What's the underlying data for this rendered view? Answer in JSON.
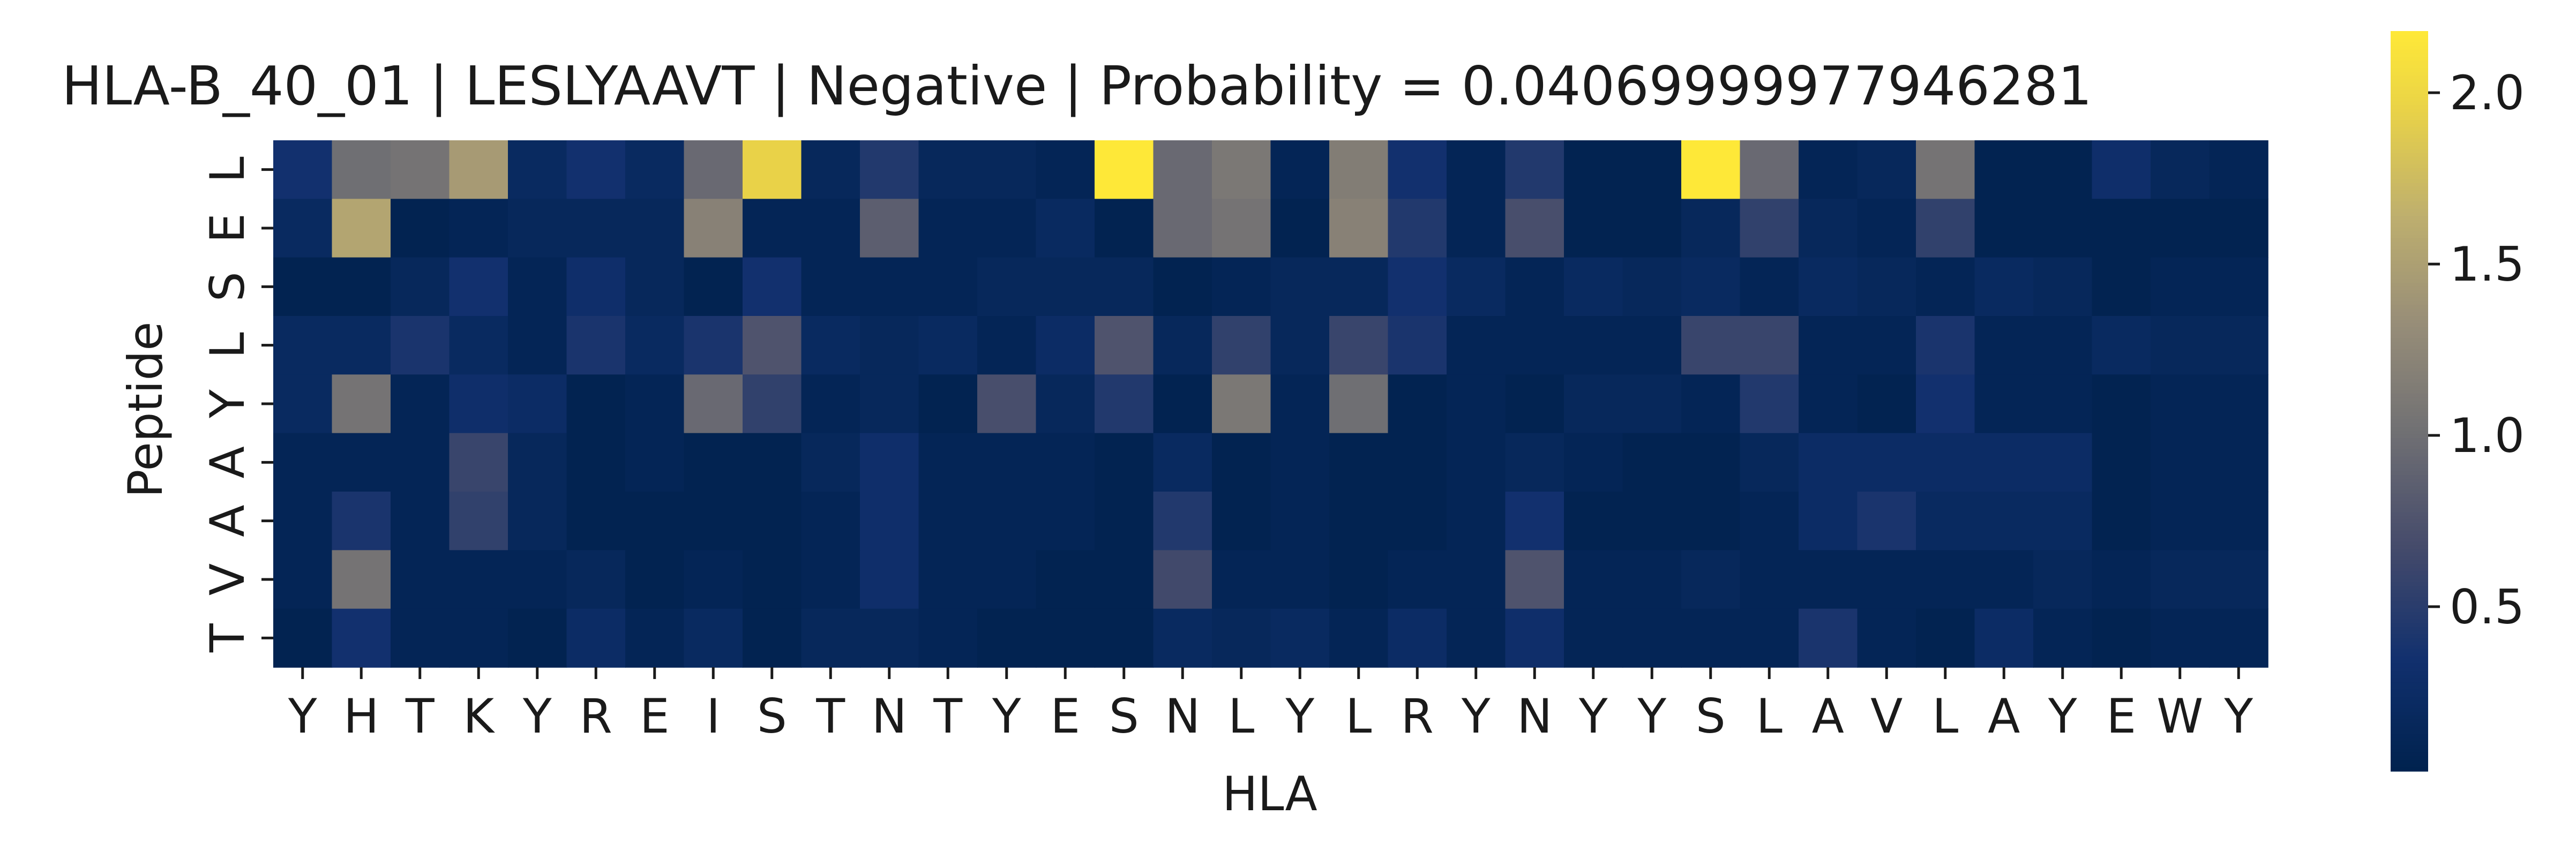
{
  "chart_data": {
    "type": "heatmap",
    "title": "HLA-B_40_01 | LESLYAAVT | Negative | Probability = 0.04069999977946281",
    "xlabel": "HLA",
    "ylabel": "Peptide",
    "x_categories": [
      "Y",
      "H",
      "T",
      "K",
      "Y",
      "R",
      "E",
      "I",
      "S",
      "T",
      "N",
      "T",
      "Y",
      "E",
      "S",
      "N",
      "L",
      "Y",
      "L",
      "R",
      "Y",
      "N",
      "Y",
      "Y",
      "S",
      "L",
      "A",
      "V",
      "L",
      "A",
      "Y",
      "E",
      "W",
      "Y"
    ],
    "y_categories": [
      "L",
      "E",
      "S",
      "L",
      "Y",
      "A",
      "A",
      "V",
      "T"
    ],
    "colorbar": {
      "colormap": "cividis",
      "vmin": 0.02,
      "vmax": 2.18,
      "ticks": [
        0.5,
        1.0,
        1.5,
        2.0
      ],
      "tick_labels": [
        "0.5",
        "1.0",
        "1.5",
        "2.0"
      ]
    },
    "values": [
      [
        0.35,
        1.0,
        1.05,
        1.45,
        0.2,
        0.35,
        0.2,
        0.95,
        1.95,
        0.15,
        0.45,
        0.15,
        0.15,
        0.1,
        2.18,
        0.95,
        1.1,
        0.1,
        1.15,
        0.35,
        0.1,
        0.45,
        0.05,
        0.05,
        2.18,
        0.95,
        0.1,
        0.15,
        1.05,
        0.05,
        0.05,
        0.3,
        0.15,
        0.1
      ],
      [
        0.2,
        1.55,
        0.05,
        0.1,
        0.15,
        0.15,
        0.15,
        1.2,
        0.1,
        0.1,
        0.85,
        0.1,
        0.1,
        0.2,
        0.05,
        0.95,
        1.05,
        0.05,
        1.2,
        0.45,
        0.1,
        0.7,
        0.05,
        0.05,
        0.15,
        0.55,
        0.15,
        0.1,
        0.55,
        0.05,
        0.05,
        0.05,
        0.05,
        0.05
      ],
      [
        0.05,
        0.05,
        0.15,
        0.35,
        0.1,
        0.3,
        0.15,
        0.05,
        0.35,
        0.1,
        0.1,
        0.1,
        0.15,
        0.15,
        0.15,
        0.05,
        0.1,
        0.15,
        0.15,
        0.35,
        0.2,
        0.1,
        0.2,
        0.15,
        0.2,
        0.1,
        0.2,
        0.15,
        0.1,
        0.2,
        0.15,
        0.05,
        0.1,
        0.1
      ],
      [
        0.2,
        0.2,
        0.4,
        0.2,
        0.1,
        0.4,
        0.2,
        0.4,
        0.75,
        0.2,
        0.15,
        0.2,
        0.1,
        0.25,
        0.75,
        0.15,
        0.55,
        0.15,
        0.6,
        0.4,
        0.1,
        0.1,
        0.1,
        0.1,
        0.6,
        0.6,
        0.1,
        0.1,
        0.4,
        0.1,
        0.1,
        0.2,
        0.15,
        0.15
      ],
      [
        0.2,
        1.05,
        0.1,
        0.3,
        0.25,
        0.05,
        0.1,
        0.95,
        0.55,
        0.1,
        0.15,
        0.05,
        0.7,
        0.15,
        0.45,
        0.05,
        1.1,
        0.1,
        1.0,
        0.05,
        0.1,
        0.05,
        0.15,
        0.15,
        0.1,
        0.45,
        0.1,
        0.05,
        0.35,
        0.1,
        0.1,
        0.05,
        0.1,
        0.1
      ],
      [
        0.1,
        0.1,
        0.1,
        0.6,
        0.15,
        0.05,
        0.1,
        0.05,
        0.05,
        0.15,
        0.3,
        0.1,
        0.1,
        0.1,
        0.05,
        0.2,
        0.05,
        0.1,
        0.05,
        0.05,
        0.1,
        0.15,
        0.1,
        0.05,
        0.05,
        0.15,
        0.25,
        0.25,
        0.25,
        0.25,
        0.25,
        0.05,
        0.1,
        0.1
      ],
      [
        0.1,
        0.4,
        0.1,
        0.55,
        0.15,
        0.05,
        0.05,
        0.05,
        0.05,
        0.1,
        0.3,
        0.1,
        0.1,
        0.1,
        0.05,
        0.45,
        0.05,
        0.1,
        0.05,
        0.05,
        0.1,
        0.35,
        0.05,
        0.05,
        0.05,
        0.1,
        0.25,
        0.4,
        0.2,
        0.2,
        0.2,
        0.05,
        0.1,
        0.1
      ],
      [
        0.1,
        1.05,
        0.1,
        0.1,
        0.1,
        0.15,
        0.05,
        0.1,
        0.05,
        0.1,
        0.3,
        0.1,
        0.1,
        0.05,
        0.05,
        0.65,
        0.1,
        0.1,
        0.05,
        0.1,
        0.1,
        0.75,
        0.1,
        0.1,
        0.15,
        0.1,
        0.1,
        0.1,
        0.1,
        0.1,
        0.15,
        0.1,
        0.15,
        0.15
      ],
      [
        0.05,
        0.35,
        0.1,
        0.1,
        0.05,
        0.25,
        0.1,
        0.2,
        0.05,
        0.15,
        0.15,
        0.1,
        0.05,
        0.05,
        0.05,
        0.2,
        0.15,
        0.2,
        0.1,
        0.25,
        0.1,
        0.3,
        0.1,
        0.1,
        0.1,
        0.1,
        0.4,
        0.1,
        0.05,
        0.25,
        0.1,
        0.05,
        0.1,
        0.1
      ]
    ]
  }
}
